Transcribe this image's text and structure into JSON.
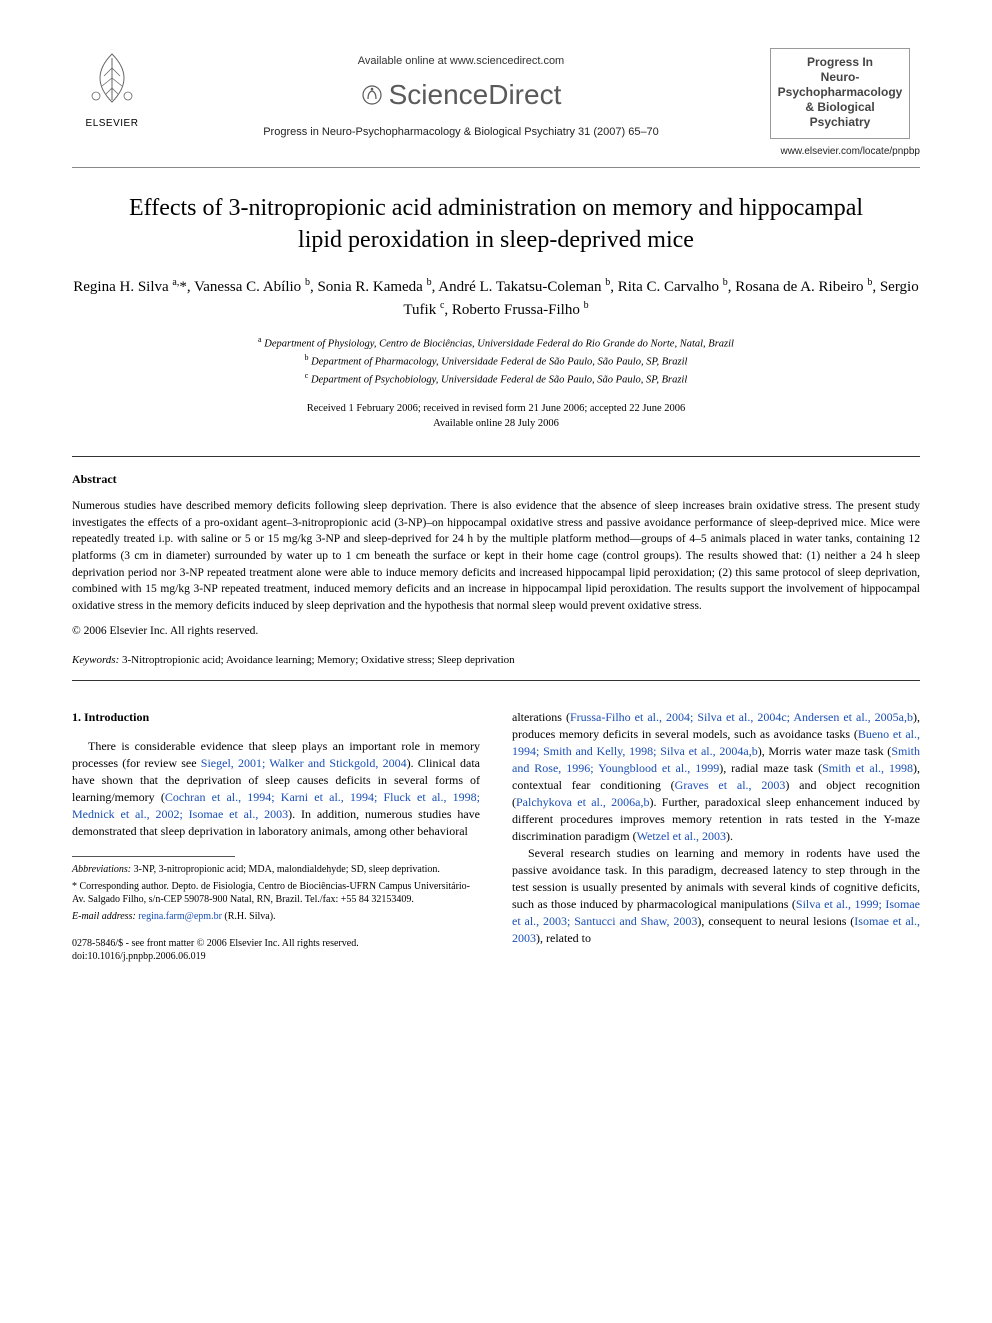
{
  "header": {
    "publisher_label": "ELSEVIER",
    "available_online": "Available online at www.sciencedirect.com",
    "scidirect_name": "ScienceDirect",
    "journal_ref": "Progress in Neuro-Psychopharmacology & Biological Psychiatry 31 (2007) 65–70",
    "journal_logo_line1": "Progress In",
    "journal_logo_line2": "Neuro-Psychopharmacology",
    "journal_logo_line3": "& Biological Psychiatry",
    "locate_url": "www.elsevier.com/locate/pnpbp"
  },
  "title": "Effects of 3-nitropropionic acid administration on memory and hippocampal lipid peroxidation in sleep-deprived mice",
  "authors_html": "Regina H. Silva <sup>a,</sup>*, Vanessa C. Abílio <sup>b</sup>, Sonia R. Kameda <sup>b</sup>, André L. Takatsu-Coleman <sup>b</sup>, Rita C. Carvalho <sup>b</sup>, Rosana de A. Ribeiro <sup>b</sup>, Sergio Tufik <sup>c</sup>, Roberto Frussa-Filho <sup>b</sup>",
  "affiliations": [
    {
      "sup": "a",
      "text": "Department of Physiology, Centro de Biociências, Universidade Federal do Rio Grande do Norte, Natal, Brazil"
    },
    {
      "sup": "b",
      "text": "Department of Pharmacology, Universidade Federal de São Paulo, São Paulo, SP, Brazil"
    },
    {
      "sup": "c",
      "text": "Department of Psychobiology, Universidade Federal de São Paulo, São Paulo, SP, Brazil"
    }
  ],
  "dates": {
    "received": "Received 1 February 2006; received in revised form 21 June 2006; accepted 22 June 2006",
    "online": "Available online 28 July 2006"
  },
  "abstract": {
    "heading": "Abstract",
    "body": "Numerous studies have described memory deficits following sleep deprivation. There is also evidence that the absence of sleep increases brain oxidative stress. The present study investigates the effects of a pro-oxidant agent–3-nitropropionic acid (3-NP)–on hippocampal oxidative stress and passive avoidance performance of sleep-deprived mice. Mice were repeatedly treated i.p. with saline or 5 or 15 mg/kg 3-NP and sleep-deprived for 24 h by the multiple platform method—groups of 4–5 animals placed in water tanks, containing 12 platforms (3 cm in diameter) surrounded by water up to 1 cm beneath the surface or kept in their home cage (control groups). The results showed that: (1) neither a 24 h sleep deprivation period nor 3-NP repeated treatment alone were able to induce memory deficits and increased hippocampal lipid peroxidation; (2) this same protocol of sleep deprivation, combined with 15 mg/kg 3-NP repeated treatment, induced memory deficits and an increase in hippocampal lipid peroxidation. The results support the involvement of hippocampal oxidative stress in the memory deficits induced by sleep deprivation and the hypothesis that normal sleep would prevent oxidative stress.",
    "copyright": "© 2006 Elsevier Inc. All rights reserved."
  },
  "keywords": {
    "label": "Keywords:",
    "text": "3-Nitroptropionic acid; Avoidance learning; Memory; Oxidative stress; Sleep deprivation"
  },
  "section1": {
    "heading": "1. Introduction",
    "col_left_p1_pre": "There is considerable evidence that sleep plays an important role in memory processes (for review see ",
    "col_left_p1_ref1": "Siegel, 2001; Walker and Stickgold, 2004",
    "col_left_p1_mid": "). Clinical data have shown that the deprivation of sleep causes deficits in several forms of learning/memory (",
    "col_left_p1_ref2": "Cochran et al., 1994; Karni et al., 1994; Fluck et al., 1998; Mednick et al., 2002; Isomae et al., 2003",
    "col_left_p1_post": "). In addition, numerous studies have demonstrated that sleep deprivation in laboratory animals, among other behavioral",
    "col_right_p1_pre": "alterations (",
    "col_right_p1_ref1": "Frussa-Filho et al., 2004; Silva et al., 2004c; Andersen et al., 2005a,b",
    "col_right_p1_mid1": "), produces memory deficits in several models, such as avoidance tasks (",
    "col_right_p1_ref2": "Bueno et al., 1994; Smith and Kelly, 1998; Silva et al., 2004a,b",
    "col_right_p1_mid2": "), Morris water maze task (",
    "col_right_p1_ref3": "Smith and Rose, 1996; Youngblood et al., 1999",
    "col_right_p1_mid3": "), radial maze task (",
    "col_right_p1_ref4": "Smith et al., 1998",
    "col_right_p1_mid4": "), contextual fear conditioning (",
    "col_right_p1_ref5": "Graves et al., 2003",
    "col_right_p1_mid5": ") and object recognition (",
    "col_right_p1_ref6": "Palchykova et al., 2006a,b",
    "col_right_p1_mid6": "). Further, paradoxical sleep enhancement induced by different procedures improves memory retention in rats tested in the Y-maze discrimination paradigm (",
    "col_right_p1_ref7": "Wetzel et al., 2003",
    "col_right_p1_post": ").",
    "col_right_p2_pre": "Several research studies on learning and memory in rodents have used the passive avoidance task. In this paradigm, decreased latency to step through in the test session is usually presented by animals with several kinds of cognitive deficits, such as those induced by pharmacological manipulations (",
    "col_right_p2_ref1": "Silva et al., 1999; Isomae et al., 2003; Santucci and Shaw, 2003",
    "col_right_p2_mid": "), consequent to neural lesions (",
    "col_right_p2_ref2": "Isomae et al., 2003",
    "col_right_p2_post": "), related to"
  },
  "footnotes": {
    "abbrev_label": "Abbreviations:",
    "abbrev_text": "3-NP, 3-nitropropionic acid; MDA, malondialdehyde; SD, sleep deprivation.",
    "corr_label": "* Corresponding author.",
    "corr_text": "Depto. de Fisiologia, Centro de Biociências-UFRN Campus Universitário-Av. Salgado Filho, s/n-CEP 59078-900 Natal, RN, Brazil. Tel./fax: +55 84 32153409.",
    "email_label": "E-mail address:",
    "email": "regina.farm@epm.br",
    "email_author": "(R.H. Silva)."
  },
  "footer": {
    "issn_line": "0278-5846/$ - see front matter © 2006 Elsevier Inc. All rights reserved.",
    "doi": "doi:10.1016/j.pnpbp.2006.06.019"
  },
  "colors": {
    "link": "#1a4fb5",
    "text": "#000000",
    "header_gray": "#5a5a5a",
    "rule": "#333333"
  },
  "typography": {
    "body_pt": 12,
    "title_pt": 24,
    "authors_pt": 15,
    "abstract_pt": 11.5,
    "footnote_pt": 10
  }
}
